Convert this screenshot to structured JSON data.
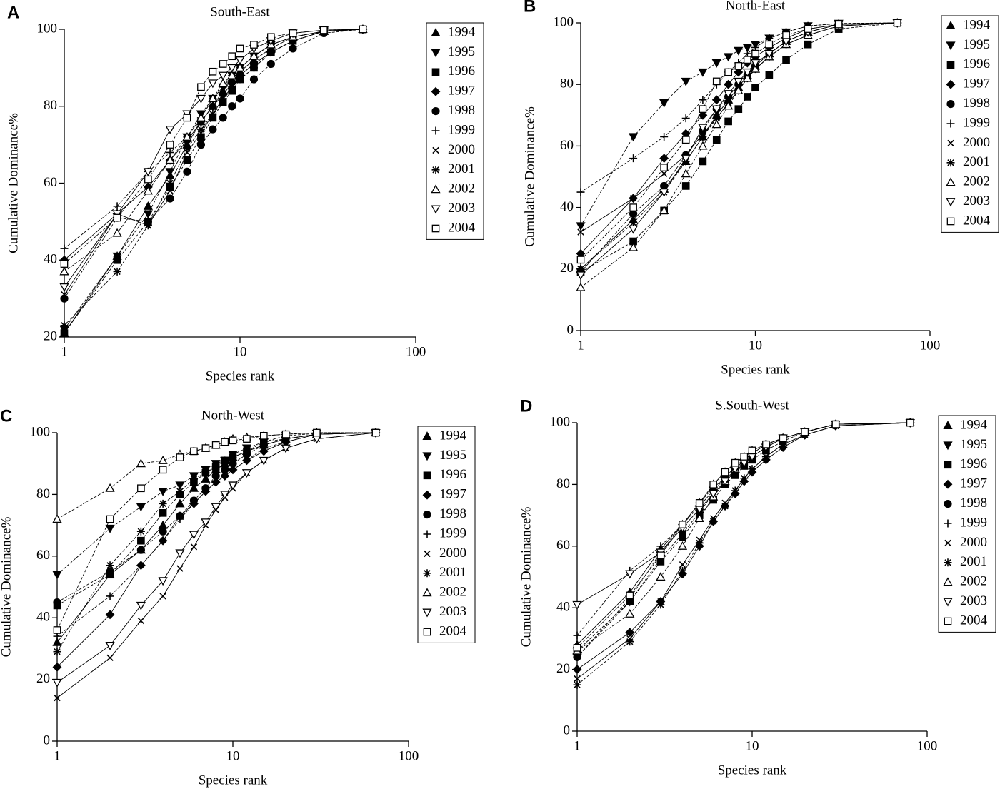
{
  "chart_data": [
    {
      "type": "line",
      "panel": "A",
      "title": "South-East",
      "x_label": "Species rank",
      "y_label": "Cumulative Dominance%",
      "xscale": "log",
      "xlim": [
        1,
        100
      ],
      "xticks": [
        1,
        10,
        100
      ],
      "ylim": [
        20,
        100
      ],
      "yticks": [
        20,
        40,
        60,
        80,
        100
      ],
      "color": "#000000",
      "x": [
        1,
        2,
        3,
        4,
        5,
        6,
        7,
        8,
        9,
        10,
        12,
        15,
        20,
        30,
        50
      ],
      "series": [
        {
          "name": "1994",
          "marker": "triangle-up",
          "values": [
            21,
            41,
            54,
            62,
            70,
            76,
            80,
            84,
            87,
            89,
            92,
            95,
            98,
            99.5,
            100
          ]
        },
        {
          "name": "1995",
          "marker": "triangle-down",
          "values": [
            22,
            41,
            52,
            63,
            72,
            78,
            82,
            85,
            88,
            90,
            93,
            96,
            98,
            99.5,
            100
          ]
        },
        {
          "name": "1996",
          "marker": "square",
          "values": [
            21,
            40,
            50,
            59,
            66,
            72,
            77,
            81,
            84,
            87,
            90,
            94,
            97,
            99.5,
            100
          ]
        },
        {
          "name": "1997",
          "marker": "diamond",
          "values": [
            40,
            52,
            59,
            66,
            71,
            76,
            80,
            83,
            86,
            88,
            91,
            94,
            97,
            99.5,
            100
          ]
        },
        {
          "name": "1998",
          "marker": "circle",
          "values": [
            30,
            51,
            50,
            56,
            63,
            70,
            74,
            77,
            80,
            82,
            87,
            91,
            95,
            99,
            100
          ]
        },
        {
          "name": "1999",
          "marker": "plus",
          "values": [
            43,
            54,
            63,
            68,
            72,
            77,
            82,
            85,
            88,
            90,
            93,
            96,
            98,
            99.5,
            100
          ]
        },
        {
          "name": "2000",
          "marker": "x",
          "values": [
            31,
            52,
            49,
            58,
            68,
            73,
            78,
            82,
            85,
            88,
            91,
            94,
            97,
            99.5,
            100
          ]
        },
        {
          "name": "2001",
          "marker": "asterisk",
          "values": [
            23,
            37,
            49,
            60,
            69,
            74,
            78,
            82,
            85,
            87,
            90,
            94,
            97,
            99.5,
            100
          ]
        },
        {
          "name": "2002",
          "marker": "triangle-up-open",
          "values": [
            37,
            47,
            58,
            66,
            72,
            77,
            82,
            86,
            88,
            90,
            93,
            96,
            98,
            99.5,
            100
          ]
        },
        {
          "name": "2003",
          "marker": "triangle-down-open",
          "values": [
            33,
            52,
            63,
            74,
            78,
            82,
            86,
            88,
            90,
            92,
            95,
            97,
            99,
            99.8,
            100
          ]
        },
        {
          "name": "2004",
          "marker": "square-open",
          "values": [
            39,
            51,
            61,
            70,
            77,
            85,
            89,
            91,
            93,
            95,
            96,
            98,
            99,
            99.8,
            100
          ]
        }
      ]
    },
    {
      "type": "line",
      "panel": "B",
      "title": "North-East",
      "x_label": "Species rank",
      "y_label": "Cumulative Dominance%",
      "xscale": "log",
      "xlim": [
        1,
        100
      ],
      "xticks": [
        1,
        10,
        100
      ],
      "ylim": [
        0,
        100
      ],
      "yticks": [
        0,
        20,
        40,
        60,
        80,
        100
      ],
      "color": "#000000",
      "x": [
        1,
        2,
        3,
        4,
        5,
        6,
        7,
        8,
        9,
        10,
        12,
        15,
        20,
        30,
        65
      ],
      "series": [
        {
          "name": "1994",
          "marker": "triangle-up",
          "values": [
            20,
            36,
            46,
            55,
            63,
            70,
            75,
            79,
            83,
            86,
            90,
            94,
            97,
            99.5,
            100
          ]
        },
        {
          "name": "1995",
          "marker": "triangle-down",
          "values": [
            34,
            63,
            74,
            81,
            84,
            87,
            89,
            91,
            92,
            93,
            95,
            97,
            99,
            99.8,
            100
          ]
        },
        {
          "name": "1996",
          "marker": "square",
          "values": [
            19,
            29,
            39,
            47,
            55,
            62,
            68,
            72,
            76,
            79,
            83,
            88,
            93,
            98,
            100
          ]
        },
        {
          "name": "1997",
          "marker": "diamond",
          "values": [
            25,
            43,
            56,
            64,
            70,
            75,
            80,
            84,
            87,
            89,
            92,
            95,
            98,
            99.5,
            100
          ]
        },
        {
          "name": "1998",
          "marker": "circle",
          "values": [
            19,
            38,
            47,
            57,
            65,
            72,
            76,
            80,
            83,
            86,
            90,
            94,
            97,
            99.5,
            100
          ]
        },
        {
          "name": "1999",
          "marker": "plus",
          "values": [
            45,
            56,
            63,
            69,
            75,
            80,
            84,
            87,
            90,
            92,
            95,
            97,
            99,
            99.8,
            100
          ]
        },
        {
          "name": "2000",
          "marker": "x",
          "values": [
            32,
            43,
            51,
            57,
            64,
            69,
            74,
            78,
            82,
            85,
            89,
            93,
            96,
            99,
            100
          ]
        },
        {
          "name": "2001",
          "marker": "asterisk",
          "values": [
            20,
            35,
            45,
            55,
            63,
            69,
            74,
            78,
            82,
            85,
            89,
            93,
            96,
            99,
            100
          ]
        },
        {
          "name": "2002",
          "marker": "triangle-up-open",
          "values": [
            14,
            27,
            39,
            51,
            60,
            67,
            73,
            78,
            82,
            85,
            89,
            93,
            96,
            99,
            100
          ]
        },
        {
          "name": "2003",
          "marker": "triangle-down-open",
          "values": [
            18,
            33,
            45,
            56,
            66,
            72,
            77,
            81,
            84,
            87,
            90,
            94,
            97,
            99.5,
            100
          ]
        },
        {
          "name": "2004",
          "marker": "square-open",
          "values": [
            23,
            40,
            53,
            62,
            72,
            81,
            84,
            86,
            88,
            90,
            93,
            96,
            98,
            99.5,
            100
          ]
        }
      ]
    },
    {
      "type": "line",
      "panel": "C",
      "title": "North-West",
      "x_label": "Species rank",
      "y_label": "Cumulative Dominance%",
      "xscale": "log",
      "xlim": [
        1,
        100
      ],
      "xticks": [
        1,
        10,
        100
      ],
      "ylim": [
        0,
        100
      ],
      "yticks": [
        0,
        20,
        40,
        60,
        80,
        100
      ],
      "color": "#000000",
      "x": [
        1,
        2,
        3,
        4,
        5,
        6,
        7,
        8,
        9,
        10,
        12,
        15,
        20,
        30,
        65
      ],
      "series": [
        {
          "name": "1994",
          "marker": "triangle-up",
          "values": [
            32,
            54,
            62,
            70,
            77,
            82,
            85,
            88,
            90,
            92,
            94,
            96,
            98,
            99.5,
            100
          ]
        },
        {
          "name": "1995",
          "marker": "triangle-down",
          "values": [
            54,
            69,
            76,
            81,
            83,
            86,
            88,
            90,
            91,
            93,
            95,
            97,
            99,
            99.8,
            100
          ]
        },
        {
          "name": "1996",
          "marker": "square",
          "values": [
            44,
            54,
            65,
            74,
            80,
            84,
            87,
            89,
            91,
            92,
            94,
            97,
            98,
            99.5,
            100
          ]
        },
        {
          "name": "1997",
          "marker": "diamond",
          "values": [
            24,
            41,
            57,
            65,
            73,
            77,
            81,
            84,
            86,
            88,
            91,
            94,
            97,
            99.5,
            100
          ]
        },
        {
          "name": "1998",
          "marker": "circle",
          "values": [
            45,
            55,
            62,
            68,
            73,
            78,
            82,
            86,
            88,
            90,
            93,
            96,
            98,
            99.5,
            100
          ]
        },
        {
          "name": "1999",
          "marker": "plus",
          "values": [
            34,
            47,
            57,
            65,
            72,
            77,
            81,
            84,
            86,
            88,
            91,
            95,
            97,
            99.5,
            100
          ]
        },
        {
          "name": "2000",
          "marker": "x",
          "values": [
            14,
            27,
            39,
            47,
            56,
            63,
            70,
            75,
            79,
            82,
            87,
            91,
            95,
            98,
            100
          ]
        },
        {
          "name": "2001",
          "marker": "asterisk",
          "values": [
            29,
            57,
            68,
            77,
            81,
            85,
            87,
            89,
            91,
            92,
            94,
            96,
            98,
            99.5,
            100
          ]
        },
        {
          "name": "2002",
          "marker": "triangle-up-open",
          "values": [
            72,
            82,
            90,
            91,
            93,
            94,
            95,
            96,
            97,
            98,
            98.5,
            99,
            99.5,
            100,
            100
          ]
        },
        {
          "name": "2003",
          "marker": "triangle-down-open",
          "values": [
            19,
            31,
            44,
            52,
            61,
            67,
            71,
            76,
            80,
            83,
            87,
            91,
            95,
            98,
            100
          ]
        },
        {
          "name": "2004",
          "marker": "square-open",
          "values": [
            36,
            72,
            82,
            88,
            92,
            94,
            95,
            96,
            97,
            97.5,
            98,
            99,
            99.5,
            100,
            100
          ]
        }
      ]
    },
    {
      "type": "line",
      "panel": "D",
      "title": "S.South-West",
      "x_label": "Species rank",
      "y_label": "Cumulative Dominance%",
      "xscale": "log",
      "xlim": [
        1,
        100
      ],
      "xticks": [
        1,
        10,
        100
      ],
      "ylim": [
        0,
        100
      ],
      "yticks": [
        0,
        20,
        40,
        60,
        80,
        100
      ],
      "color": "#000000",
      "x": [
        1,
        2,
        3,
        4,
        5,
        6,
        7,
        8,
        9,
        10,
        12,
        15,
        20,
        30,
        80
      ],
      "series": [
        {
          "name": "1994",
          "marker": "triangle-up",
          "values": [
            28,
            45,
            59,
            67,
            74,
            80,
            84,
            87,
            89,
            91,
            93,
            95,
            97,
            99.5,
            100
          ]
        },
        {
          "name": "1995",
          "marker": "triangle-down",
          "values": [
            24,
            42,
            56,
            64,
            71,
            77,
            81,
            84,
            87,
            89,
            92,
            95,
            97,
            99.5,
            100
          ]
        },
        {
          "name": "1996",
          "marker": "square",
          "values": [
            26,
            42,
            55,
            63,
            70,
            75,
            80,
            83,
            86,
            88,
            91,
            94,
            97,
            99.5,
            100
          ]
        },
        {
          "name": "1997",
          "marker": "diamond",
          "values": [
            20,
            32,
            42,
            51,
            60,
            68,
            73,
            77,
            81,
            84,
            88,
            92,
            96,
            99,
            100
          ]
        },
        {
          "name": "1998",
          "marker": "circle",
          "values": [
            24,
            43,
            58,
            67,
            73,
            78,
            82,
            85,
            88,
            90,
            93,
            95,
            97,
            99.5,
            100
          ]
        },
        {
          "name": "1999",
          "marker": "plus",
          "values": [
            31,
            52,
            60,
            67,
            74,
            79,
            82,
            86,
            88,
            90,
            93,
            95,
            97,
            99.5,
            100
          ]
        },
        {
          "name": "2000",
          "marker": "x",
          "values": [
            17,
            30,
            42,
            54,
            62,
            69,
            74,
            78,
            82,
            85,
            89,
            93,
            96,
            99,
            100
          ]
        },
        {
          "name": "2001",
          "marker": "asterisk",
          "values": [
            15,
            29,
            41,
            52,
            61,
            68,
            73,
            78,
            82,
            85,
            89,
            93,
            96,
            99,
            100
          ]
        },
        {
          "name": "2002",
          "marker": "triangle-up-open",
          "values": [
            26,
            38,
            50,
            60,
            69,
            76,
            81,
            85,
            88,
            90,
            93,
            95,
            97,
            99.5,
            100
          ]
        },
        {
          "name": "2003",
          "marker": "triangle-down-open",
          "values": [
            41,
            51,
            58,
            66,
            72,
            77,
            81,
            85,
            87,
            89,
            92,
            95,
            97,
            99.5,
            100
          ]
        },
        {
          "name": "2004",
          "marker": "square-open",
          "values": [
            27,
            44,
            57,
            67,
            74,
            80,
            84,
            87,
            89,
            91,
            93,
            95,
            97,
            99.5,
            100
          ]
        }
      ]
    }
  ]
}
